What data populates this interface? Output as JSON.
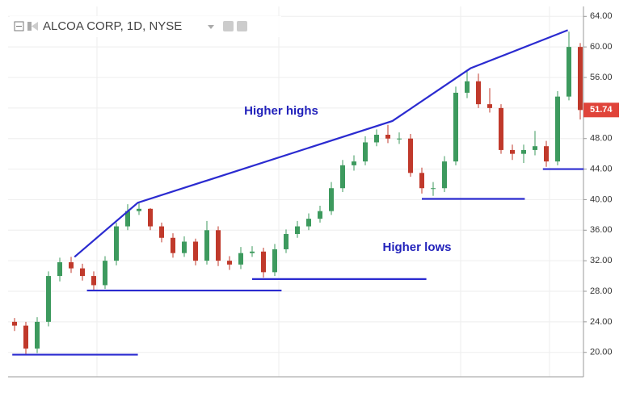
{
  "chart_data": {
    "type": "candlestick",
    "title": "ALCOA CORP, 1D, NYSE",
    "open": [
      24,
      23.5,
      20.5,
      24,
      30,
      31.8,
      31,
      30,
      28.8,
      32,
      36.5,
      38.5,
      38.8,
      36.5,
      35,
      33,
      34.5,
      32,
      36,
      32,
      31.5,
      33,
      33.2,
      30.5,
      33.5,
      35.5,
      36.5,
      37.5,
      38.5,
      41.5,
      44.5,
      45,
      47.5,
      48.5,
      48,
      48,
      43.5,
      41.5,
      41.5,
      45,
      54,
      55.5,
      52.5,
      52,
      46.5,
      46,
      46.5,
      47,
      45,
      53.5,
      60
    ],
    "high": [
      24.5,
      24,
      24.6,
      30.6,
      32.4,
      32.5,
      31.6,
      30.6,
      32.6,
      37,
      39.4,
      39.6,
      38.9,
      37,
      35.6,
      35.2,
      34.9,
      37.2,
      36.5,
      32.6,
      33.8,
      33.9,
      33.7,
      34.2,
      36.1,
      37.2,
      38.2,
      39.2,
      42.3,
      45.2,
      45.8,
      48.3,
      49.2,
      49.8,
      48.8,
      48.6,
      44.2,
      42.3,
      45.7,
      54.8,
      57,
      56.5,
      54.6,
      52.5,
      47.2,
      47.2,
      49,
      47.7,
      54.2,
      62,
      60.5
    ],
    "low": [
      22.8,
      19.7,
      19.9,
      23.4,
      29.3,
      30.4,
      29.4,
      28.2,
      28.3,
      31.4,
      36,
      38,
      36,
      34.4,
      32.4,
      32.5,
      31.4,
      31.5,
      31.3,
      30.8,
      30.9,
      32.5,
      29.8,
      30,
      33,
      35,
      36,
      37,
      38,
      41,
      43.8,
      44.5,
      47,
      47.4,
      47.3,
      43,
      40.8,
      40.5,
      41,
      44.5,
      53.3,
      52,
      51.4,
      46,
      45.2,
      44.8,
      45.8,
      44.3,
      44.5,
      53,
      50.5
    ],
    "close": [
      23.5,
      20.5,
      24,
      30,
      31.8,
      31,
      30,
      28.8,
      32,
      36.5,
      38.5,
      38.8,
      36.5,
      35,
      33,
      34.5,
      32,
      36,
      32,
      31.5,
      33,
      33.2,
      30.5,
      33.5,
      35.5,
      36.5,
      37.5,
      38.5,
      41.5,
      44.5,
      45,
      47.5,
      48.5,
      48,
      48,
      43.5,
      41.5,
      41.5,
      45,
      54,
      55.5,
      52.5,
      52,
      46.5,
      46,
      46.5,
      47,
      45,
      53.5,
      60,
      51.74
    ],
    "up_color": "#3d9a5e",
    "down_color": "#c0392b",
    "last_price": 51.74,
    "ylim": [
      16.8,
      65.3
    ],
    "yticks": [
      {
        "value": 20,
        "label": "20.00"
      },
      {
        "value": 24,
        "label": "24.00"
      },
      {
        "value": 28,
        "label": "28.00"
      },
      {
        "value": 32,
        "label": "32.00"
      },
      {
        "value": 36,
        "label": "36.00"
      },
      {
        "value": 40,
        "label": "40.00"
      },
      {
        "value": 44,
        "label": "44.00"
      },
      {
        "value": 48,
        "label": "48.00"
      },
      {
        "value": 52,
        "label": "52.00"
      },
      {
        "value": 56,
        "label": "56.00"
      },
      {
        "value": 60,
        "label": "60.00"
      },
      {
        "value": 64,
        "label": "64.00"
      }
    ],
    "grid": true,
    "trendline_color": "#2b2bd0",
    "higher_highs_line": [
      [
        5.3,
        32.5
      ],
      [
        10.9,
        39.6
      ],
      [
        33.4,
        50.3
      ],
      [
        40.3,
        57.2
      ],
      [
        48.9,
        62.2
      ]
    ],
    "higher_lows_lines": [
      [
        [
          -0.2,
          19.7
        ],
        [
          10.9,
          19.7
        ]
      ],
      [
        [
          6.4,
          28.1
        ],
        [
          23.6,
          28.1
        ]
      ],
      [
        [
          21,
          29.6
        ],
        [
          36.4,
          29.6
        ]
      ],
      [
        [
          36,
          40.1
        ],
        [
          45.1,
          40.1
        ]
      ],
      [
        [
          46.7,
          44
        ],
        [
          50.3,
          44
        ]
      ]
    ],
    "annotations": [
      "Higher highs",
      "Higher lows"
    ]
  }
}
